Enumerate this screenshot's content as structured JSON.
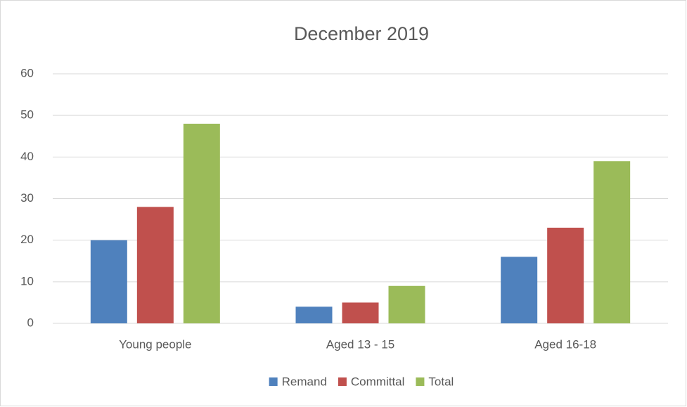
{
  "chart_data": {
    "type": "bar",
    "title": "December 2019",
    "categories": [
      "Young people",
      "Aged 13 - 15",
      "Aged 16-18"
    ],
    "series": [
      {
        "name": "Remand",
        "color": "#4f81bd",
        "values": [
          20,
          4,
          16
        ]
      },
      {
        "name": "Committal",
        "color": "#c0504d",
        "values": [
          28,
          5,
          23
        ]
      },
      {
        "name": "Total",
        "color": "#9bbb59",
        "values": [
          48,
          9,
          39
        ]
      }
    ],
    "ylim": [
      0,
      60
    ],
    "yticks": [
      0,
      10,
      20,
      30,
      40,
      50,
      60
    ],
    "grid": true,
    "legend": "bottom"
  }
}
